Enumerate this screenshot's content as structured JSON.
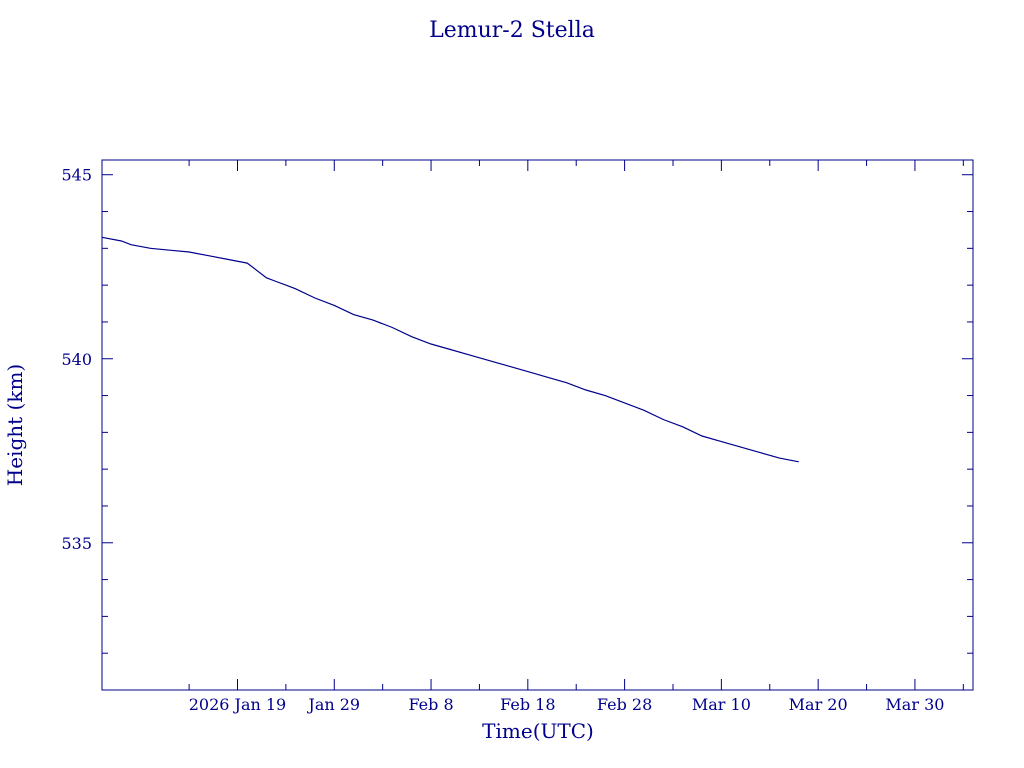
{
  "colors": {
    "ink": "#00008b",
    "background": "#ffffff"
  },
  "chart_data": {
    "type": "line",
    "title": "Lemur-2 Stella",
    "xlabel": "Time(UTC)",
    "ylabel": "Height (km)",
    "x_is_date": true,
    "xlim": [
      "2026-01-05",
      "2026-04-05"
    ],
    "ylim": [
      531,
      545.4
    ],
    "x_ticks": [
      {
        "date": "2026-01-19",
        "label": "2026 Jan 19"
      },
      {
        "date": "2026-01-29",
        "label": "Jan 29"
      },
      {
        "date": "2026-02-08",
        "label": "Feb  8"
      },
      {
        "date": "2026-02-18",
        "label": "Feb 18"
      },
      {
        "date": "2026-02-28",
        "label": "Feb 28"
      },
      {
        "date": "2026-03-10",
        "label": "Mar 10"
      },
      {
        "date": "2026-03-20",
        "label": "Mar 20"
      },
      {
        "date": "2026-03-30",
        "label": "Mar 30"
      }
    ],
    "x_minor_ticks": [
      "2026-01-14",
      "2026-01-24",
      "2026-02-03",
      "2026-02-13",
      "2026-02-23",
      "2026-03-05",
      "2026-03-15",
      "2026-03-25",
      "2026-04-04"
    ],
    "y_ticks": [
      {
        "value": 535,
        "label": "535"
      },
      {
        "value": 540,
        "label": "540"
      },
      {
        "value": 545,
        "label": "545"
      }
    ],
    "y_minor_ticks": [
      532,
      533,
      534,
      536,
      537,
      538,
      539,
      541,
      542,
      543,
      544
    ],
    "grid": false,
    "series": [
      {
        "x": [
          "2026-01-05",
          "2026-01-07",
          "2026-01-08",
          "2026-01-10",
          "2026-01-12",
          "2026-01-14",
          "2026-01-16",
          "2026-01-18",
          "2026-01-20",
          "2026-01-22",
          "2026-01-23",
          "2026-01-24",
          "2026-01-25",
          "2026-01-27",
          "2026-01-29",
          "2026-01-31",
          "2026-02-02",
          "2026-02-04",
          "2026-02-06",
          "2026-02-08",
          "2026-02-10",
          "2026-02-12",
          "2026-02-14",
          "2026-02-16",
          "2026-02-18",
          "2026-02-20",
          "2026-02-22",
          "2026-02-24",
          "2026-02-26",
          "2026-02-28",
          "2026-03-02",
          "2026-03-04",
          "2026-03-06",
          "2026-03-08",
          "2026-03-10",
          "2026-03-12",
          "2026-03-14",
          "2026-03-16",
          "2026-03-18"
        ],
        "values": [
          543.3,
          543.2,
          543.1,
          543.0,
          542.95,
          542.9,
          542.8,
          542.7,
          542.6,
          542.2,
          542.1,
          542.0,
          541.9,
          541.65,
          541.45,
          541.2,
          541.05,
          540.85,
          540.6,
          540.4,
          540.25,
          540.1,
          539.95,
          539.8,
          539.65,
          539.5,
          539.35,
          539.15,
          539.0,
          538.8,
          538.6,
          538.35,
          538.15,
          537.9,
          537.75,
          537.6,
          537.45,
          537.3,
          537.2
        ]
      }
    ]
  }
}
